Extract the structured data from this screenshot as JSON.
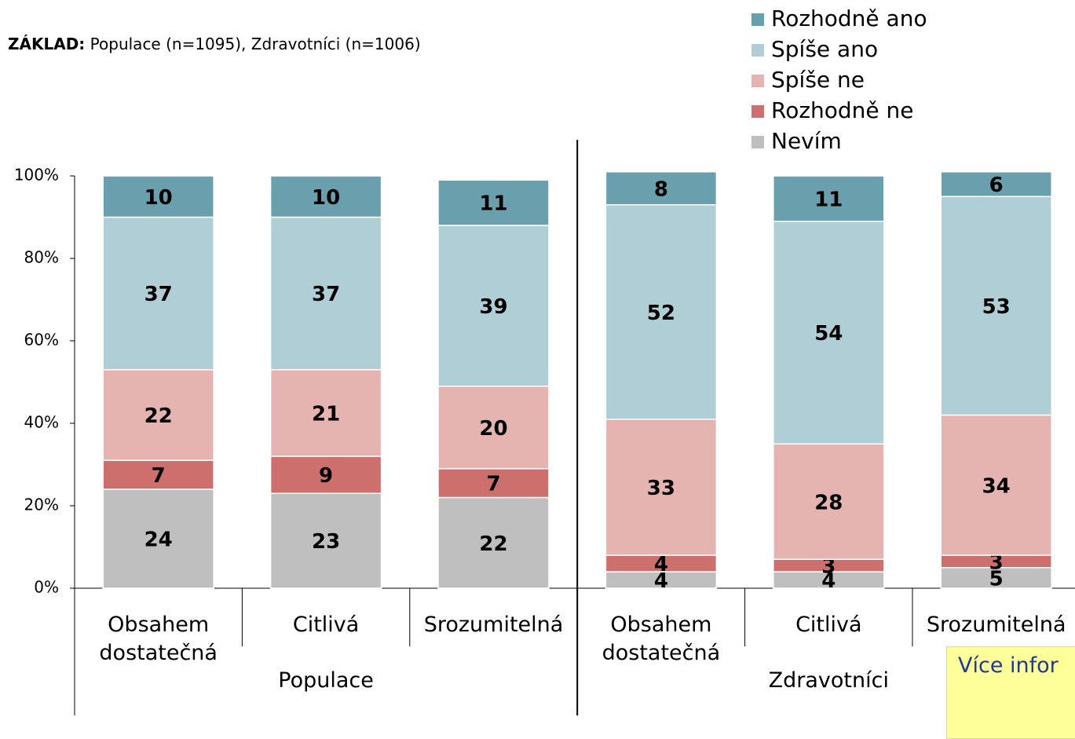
{
  "chart_data": {
    "type": "bar",
    "stacked": true,
    "note_label": "ZÁKLAD:",
    "note": "Populace (n=1095), Zdravotníci (n=1006)",
    "callout": "Více infor",
    "categories": [
      "Obsahem dostatečná",
      "Citlivá",
      "Srozumitelná",
      "Obsahem dostatečná",
      "Citlivá",
      "Srozumitelná"
    ],
    "groups": [
      {
        "name": "Populace",
        "size": 3
      },
      {
        "name": "Zdravotníci",
        "size": 3
      }
    ],
    "series": [
      {
        "name": "Rozhodně ano",
        "color": "#6a9fad",
        "values": [
          10,
          10,
          11,
          8,
          11,
          6
        ]
      },
      {
        "name": "Spíše ano",
        "color": "#b0ced6",
        "values": [
          37,
          37,
          39,
          52,
          54,
          53
        ]
      },
      {
        "name": "Spíše ne",
        "color": "#e6b4b0",
        "values": [
          22,
          21,
          20,
          33,
          28,
          34
        ]
      },
      {
        "name": "Rozhodně ne",
        "color": "#cd706d",
        "values": [
          7,
          9,
          7,
          4,
          3,
          3
        ]
      },
      {
        "name": "Nevím",
        "color": "#bfbfbf",
        "values": [
          24,
          23,
          22,
          4,
          4,
          5
        ]
      }
    ],
    "ylim": [
      0,
      100
    ],
    "yticks": [
      {
        "value": 0,
        "label": "0%"
      },
      {
        "value": 20,
        "label": "20%"
      },
      {
        "value": 40,
        "label": "40%"
      },
      {
        "value": 60,
        "label": "60%"
      },
      {
        "value": 80,
        "label": "80%"
      },
      {
        "value": 100,
        "label": "100%"
      }
    ],
    "legend": "top-right"
  }
}
